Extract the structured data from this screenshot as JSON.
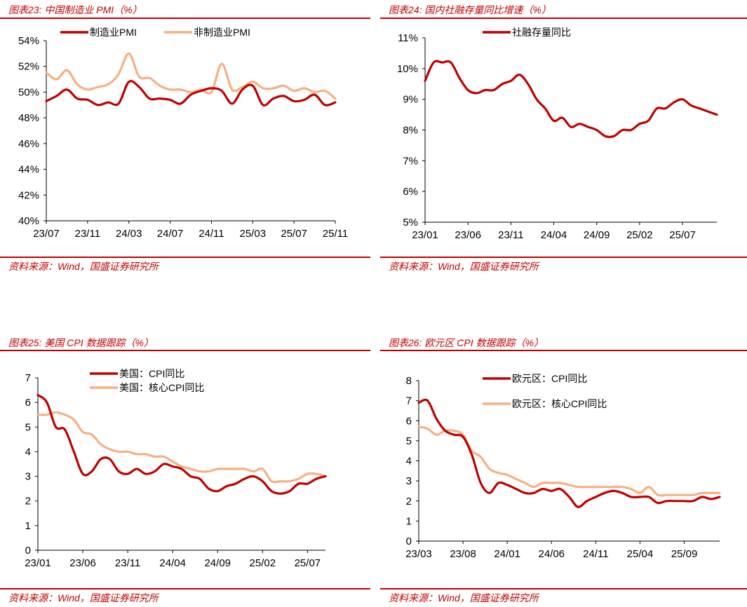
{
  "panels": [
    {
      "title": "图表23:  中国制造业 PMI（%）",
      "source": "资料来源：Wind，国盛证券研究所"
    },
    {
      "title": "图表24:  国内社融存量同比增速（%）",
      "source": "资料来源：Wind，国盛证券研究所"
    },
    {
      "title": "图表25:  美国 CPI 数据跟踪（%）",
      "source": "资料来源：Wind，国盛证券研究所"
    },
    {
      "title": "图表26:  欧元区 CPI 数据跟踪（%）",
      "source": "资料来源：Wind，国盛证券研究所"
    }
  ],
  "colors": {
    "dark_red": "#c00000",
    "light_orange": "#f4b183",
    "text": "#000000"
  },
  "chart_data": [
    {
      "type": "line",
      "title": "",
      "x_ticks": [
        "23/07",
        "23/11",
        "24/03",
        "24/07",
        "24/11",
        "25/03",
        "25/07",
        "25/11"
      ],
      "x_range": [
        0,
        28
      ],
      "y_ticks": [
        "40%",
        "42%",
        "44%",
        "46%",
        "48%",
        "50%",
        "52%",
        "54%"
      ],
      "ylim": [
        40,
        54
      ],
      "legend_position": "top",
      "series": [
        {
          "name": "制造业PMI",
          "color": "#c00000",
          "x": [
            0,
            1,
            2,
            3,
            4,
            5,
            6,
            7,
            8,
            9,
            10,
            11,
            12,
            13,
            14,
            15,
            16,
            17,
            18,
            19,
            20,
            21,
            22,
            23,
            24,
            25,
            26,
            27,
            28
          ],
          "values": [
            49.3,
            49.7,
            50.2,
            49.5,
            49.4,
            49.0,
            49.2,
            49.1,
            50.8,
            50.4,
            49.5,
            49.5,
            49.4,
            49.1,
            49.8,
            50.1,
            50.3,
            50.1,
            49.1,
            50.2,
            50.5,
            49.0,
            49.5,
            49.7,
            49.3,
            49.4,
            49.8,
            49.0,
            49.2
          ]
        },
        {
          "name": "非制造业PMI",
          "color": "#f4b183",
          "x": [
            0,
            1,
            2,
            3,
            4,
            5,
            6,
            7,
            8,
            9,
            10,
            11,
            12,
            13,
            14,
            15,
            16,
            17,
            18,
            19,
            20,
            21,
            22,
            23,
            24,
            25,
            26,
            27,
            28
          ],
          "values": [
            51.5,
            51.0,
            51.7,
            50.6,
            50.2,
            50.4,
            50.6,
            51.4,
            53.0,
            51.2,
            51.1,
            50.5,
            50.2,
            50.2,
            50.0,
            50.2,
            50.0,
            52.2,
            50.2,
            50.4,
            50.8,
            50.3,
            50.3,
            50.5,
            50.1,
            50.3,
            50.0,
            50.1,
            49.5
          ]
        }
      ]
    },
    {
      "type": "line",
      "title": "",
      "x_ticks": [
        "23/01",
        "23/06",
        "23/11",
        "24/04",
        "24/09",
        "25/02",
        "25/07"
      ],
      "x_range": [
        0,
        34
      ],
      "y_ticks": [
        "5%",
        "6%",
        "7%",
        "8%",
        "9%",
        "10%",
        "11%"
      ],
      "ylim": [
        5,
        11
      ],
      "legend_position": "top",
      "series": [
        {
          "name": "社融存量同比",
          "color": "#c00000",
          "x": [
            0,
            1,
            2,
            3,
            4,
            5,
            6,
            7,
            8,
            9,
            10,
            11,
            12,
            13,
            14,
            15,
            16,
            17,
            18,
            19,
            20,
            21,
            22,
            23,
            24,
            25,
            26,
            27,
            28,
            29,
            30,
            31,
            32,
            33,
            34
          ],
          "values": [
            9.6,
            10.2,
            10.2,
            10.2,
            9.7,
            9.3,
            9.2,
            9.3,
            9.3,
            9.5,
            9.6,
            9.8,
            9.5,
            9.0,
            8.7,
            8.3,
            8.4,
            8.1,
            8.2,
            8.1,
            8.0,
            7.8,
            7.8,
            8.0,
            8.0,
            8.2,
            8.3,
            8.7,
            8.7,
            8.9,
            9.0,
            8.8,
            8.7,
            8.6,
            8.5
          ]
        }
      ]
    },
    {
      "type": "line",
      "title": "",
      "x_ticks": [
        "23/01",
        "23/06",
        "23/11",
        "24/04",
        "24/09",
        "25/02",
        "25/07"
      ],
      "x_range": [
        0,
        32
      ],
      "y_ticks": [
        "0",
        "1",
        "2",
        "3",
        "4",
        "5",
        "6",
        "7"
      ],
      "ylim": [
        0,
        7
      ],
      "legend_position": "top",
      "series": [
        {
          "name": "美国：CPI同比",
          "color": "#c00000",
          "x": [
            0,
            1,
            2,
            3,
            4,
            5,
            6,
            7,
            8,
            9,
            10,
            11,
            12,
            13,
            14,
            15,
            16,
            17,
            18,
            19,
            20,
            21,
            22,
            23,
            24,
            25,
            26,
            27,
            28,
            29,
            30,
            31,
            32
          ],
          "values": [
            6.3,
            6.0,
            5.0,
            4.9,
            4.0,
            3.1,
            3.2,
            3.7,
            3.7,
            3.2,
            3.1,
            3.3,
            3.1,
            3.2,
            3.5,
            3.4,
            3.3,
            3.0,
            2.9,
            2.5,
            2.4,
            2.6,
            2.7,
            2.9,
            3.0,
            2.8,
            2.4,
            2.3,
            2.4,
            2.7,
            2.7,
            2.9,
            3.0
          ]
        },
        {
          "name": "美国：核心CPI同比",
          "color": "#f4b183",
          "x": [
            0,
            1,
            2,
            3,
            4,
            5,
            6,
            7,
            8,
            9,
            10,
            11,
            12,
            13,
            14,
            15,
            16,
            17,
            18,
            19,
            20,
            21,
            22,
            23,
            24,
            25,
            26,
            27,
            28,
            29,
            30,
            31,
            32
          ],
          "values": [
            5.5,
            5.5,
            5.6,
            5.5,
            5.3,
            4.8,
            4.7,
            4.3,
            4.1,
            4.0,
            4.0,
            3.9,
            3.9,
            3.8,
            3.8,
            3.6,
            3.4,
            3.3,
            3.2,
            3.2,
            3.3,
            3.3,
            3.3,
            3.3,
            3.2,
            3.3,
            2.8,
            2.8,
            2.8,
            2.9,
            3.1,
            3.1,
            3.0
          ]
        }
      ]
    },
    {
      "type": "line",
      "title": "",
      "x_ticks": [
        "23/03",
        "23/08",
        "24/01",
        "24/06",
        "24/11",
        "25/04",
        "25/09"
      ],
      "x_range": [
        0,
        34
      ],
      "y_ticks": [
        "0",
        "1",
        "2",
        "3",
        "4",
        "5",
        "6",
        "7",
        "8"
      ],
      "ylim": [
        0,
        8
      ],
      "legend_position": "top",
      "series": [
        {
          "name": "欧元区：CPI同比",
          "color": "#c00000",
          "x": [
            0,
            1,
            2,
            3,
            4,
            5,
            6,
            7,
            8,
            9,
            10,
            11,
            12,
            13,
            14,
            15,
            16,
            17,
            18,
            19,
            20,
            21,
            22,
            23,
            24,
            25,
            26,
            27,
            28,
            29,
            30,
            31,
            32,
            33,
            34
          ],
          "values": [
            6.9,
            7.0,
            6.1,
            5.5,
            5.3,
            5.2,
            4.3,
            2.9,
            2.4,
            2.9,
            2.8,
            2.6,
            2.4,
            2.4,
            2.6,
            2.5,
            2.6,
            2.2,
            1.7,
            2.0,
            2.2,
            2.4,
            2.5,
            2.4,
            2.2,
            2.2,
            2.2,
            1.9,
            2.0,
            2.0,
            2.0,
            2.0,
            2.2,
            2.1,
            2.2
          ]
        },
        {
          "name": "欧元区：核心CPI同比",
          "color": "#f4b183",
          "x": [
            0,
            1,
            2,
            3,
            4,
            5,
            6,
            7,
            8,
            9,
            10,
            11,
            12,
            13,
            14,
            15,
            16,
            17,
            18,
            19,
            20,
            21,
            22,
            23,
            24,
            25,
            26,
            27,
            28,
            29,
            30,
            31,
            32,
            33,
            34
          ],
          "values": [
            5.7,
            5.6,
            5.3,
            5.5,
            5.5,
            5.3,
            4.5,
            4.2,
            3.6,
            3.4,
            3.3,
            3.1,
            2.9,
            2.7,
            2.9,
            2.9,
            2.9,
            2.8,
            2.7,
            2.7,
            2.7,
            2.7,
            2.7,
            2.7,
            2.6,
            2.4,
            2.7,
            2.3,
            2.3,
            2.3,
            2.3,
            2.3,
            2.4,
            2.4,
            2.4
          ]
        }
      ]
    }
  ]
}
